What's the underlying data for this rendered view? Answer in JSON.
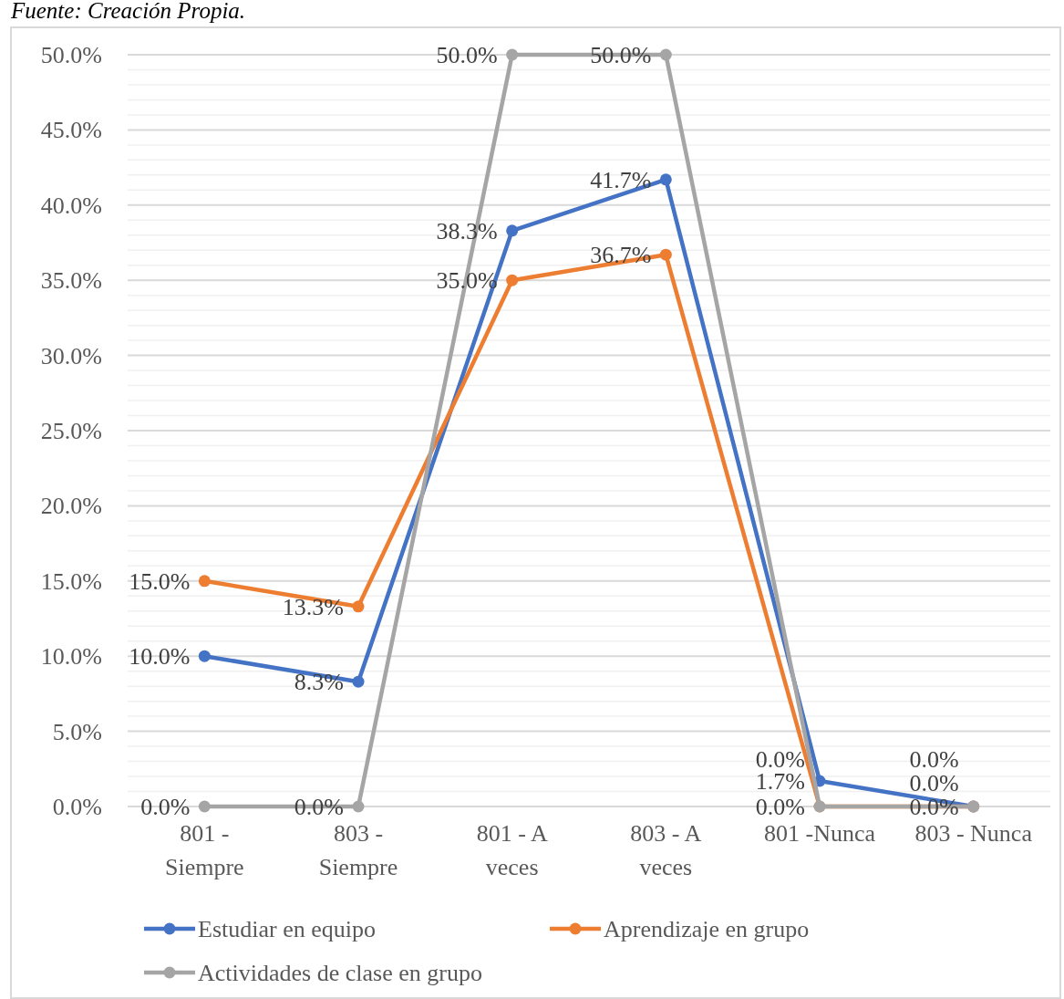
{
  "chart_data": {
    "type": "line",
    "annotations": [
      "Fuente: Creación Propia."
    ],
    "categories": [
      "801 - Siempre",
      "803 - Siempre",
      "801 - A veces",
      "803 - A veces",
      "801 -Nunca",
      "803 - Nunca"
    ],
    "series": [
      {
        "name": "Estudiar en equipo",
        "color": "#4472c4",
        "values": [
          10.0,
          8.3,
          38.3,
          41.7,
          1.7,
          0.0
        ],
        "value_labels": [
          "10.0%",
          "8.3%",
          "38.3%",
          "41.7%",
          "1.7%",
          "0.0%"
        ]
      },
      {
        "name": "Aprendizaje en grupo",
        "color": "#ed7d31",
        "values": [
          15.0,
          13.3,
          35.0,
          36.7,
          0.0,
          0.0
        ],
        "value_labels": [
          "15.0%",
          "13.3%",
          "35.0%",
          "36.7%",
          "0.0%",
          "0.0%"
        ]
      },
      {
        "name": "Actividades de clase en grupo",
        "color": "#a5a5a5",
        "values": [
          0.0,
          0.0,
          50.0,
          50.0,
          0.0,
          0.0
        ],
        "value_labels": [
          "0.0%",
          "0.0%",
          "50.0%",
          "50.0%",
          "0.0%",
          "0.0%"
        ]
      }
    ],
    "ylim": [
      0,
      50
    ],
    "yticks": [
      {
        "value": 0,
        "label": "0.0%"
      },
      {
        "value": 1,
        "label": null
      },
      {
        "value": 2,
        "label": null
      },
      {
        "value": 3,
        "label": null
      },
      {
        "value": 4,
        "label": null
      },
      {
        "value": 5,
        "label": "5.0%"
      },
      {
        "value": 6,
        "label": null
      },
      {
        "value": 7,
        "label": null
      },
      {
        "value": 8,
        "label": null
      },
      {
        "value": 9,
        "label": null
      },
      {
        "value": 10,
        "label": "10.0%"
      },
      {
        "value": 11,
        "label": null
      },
      {
        "value": 12,
        "label": null
      },
      {
        "value": 13,
        "label": null
      },
      {
        "value": 14,
        "label": null
      },
      {
        "value": 15,
        "label": "15.0%"
      },
      {
        "value": 16,
        "label": null
      },
      {
        "value": 17,
        "label": null
      },
      {
        "value": 18,
        "label": null
      },
      {
        "value": 19,
        "label": null
      },
      {
        "value": 20,
        "label": "20.0%"
      },
      {
        "value": 21,
        "label": null
      },
      {
        "value": 22,
        "label": null
      },
      {
        "value": 23,
        "label": null
      },
      {
        "value": 24,
        "label": null
      },
      {
        "value": 25,
        "label": "25.0%"
      },
      {
        "value": 26,
        "label": null
      },
      {
        "value": 27,
        "label": null
      },
      {
        "value": 28,
        "label": null
      },
      {
        "value": 29,
        "label": null
      },
      {
        "value": 30,
        "label": "30.0%"
      },
      {
        "value": 31,
        "label": null
      },
      {
        "value": 32,
        "label": null
      },
      {
        "value": 33,
        "label": null
      },
      {
        "value": 34,
        "label": null
      },
      {
        "value": 35,
        "label": "35.0%"
      },
      {
        "value": 36,
        "label": null
      },
      {
        "value": 37,
        "label": null
      },
      {
        "value": 38,
        "label": null
      },
      {
        "value": 39,
        "label": null
      },
      {
        "value": 40,
        "label": "40.0%"
      },
      {
        "value": 41,
        "label": null
      },
      {
        "value": 42,
        "label": null
      },
      {
        "value": 43,
        "label": null
      },
      {
        "value": 44,
        "label": null
      },
      {
        "value": 45,
        "label": "45.0%"
      },
      {
        "value": 46,
        "label": null
      },
      {
        "value": 47,
        "label": null
      },
      {
        "value": 48,
        "label": null
      },
      {
        "value": 49,
        "label": null
      },
      {
        "value": 50,
        "label": "50.0%"
      }
    ],
    "grid": true,
    "legend": "bottom",
    "marker": "circle",
    "line_style": "solid"
  }
}
